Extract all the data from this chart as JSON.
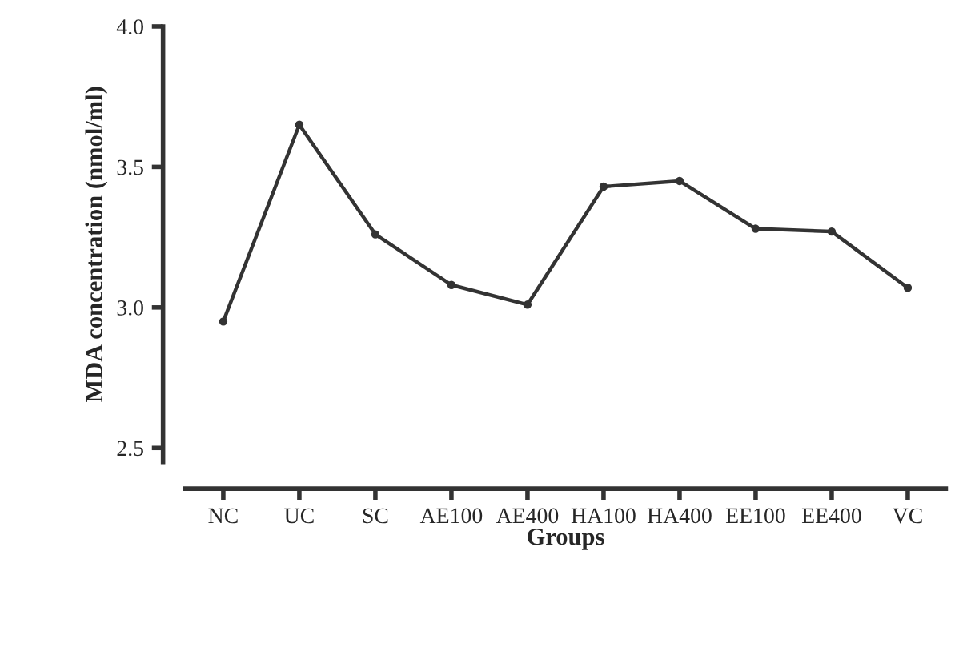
{
  "chart_data": {
    "type": "line",
    "xlabel": "Groups",
    "ylabel": "MDA concentration (nmol/ml)",
    "categories": [
      "NC",
      "UC",
      "SC",
      "AE100",
      "AE400",
      "HA100",
      "HA400",
      "EE100",
      "EE400",
      "VC"
    ],
    "series": [
      {
        "color": "#333333",
        "values": [
          2.95,
          3.65,
          3.26,
          3.08,
          3.01,
          3.43,
          3.45,
          3.28,
          3.27,
          3.07
        ]
      }
    ],
    "ylim": [
      2.45,
      4.0
    ],
    "yticks": [
      {
        "value": 2.5,
        "label": "2.5"
      },
      {
        "value": 3.0,
        "label": "3.0"
      },
      {
        "value": 3.5,
        "label": "3.5"
      },
      {
        "value": 4.0,
        "label": "4.0"
      }
    ],
    "marker": "circle",
    "line_style": "solid",
    "grid": false,
    "legend": false
  }
}
